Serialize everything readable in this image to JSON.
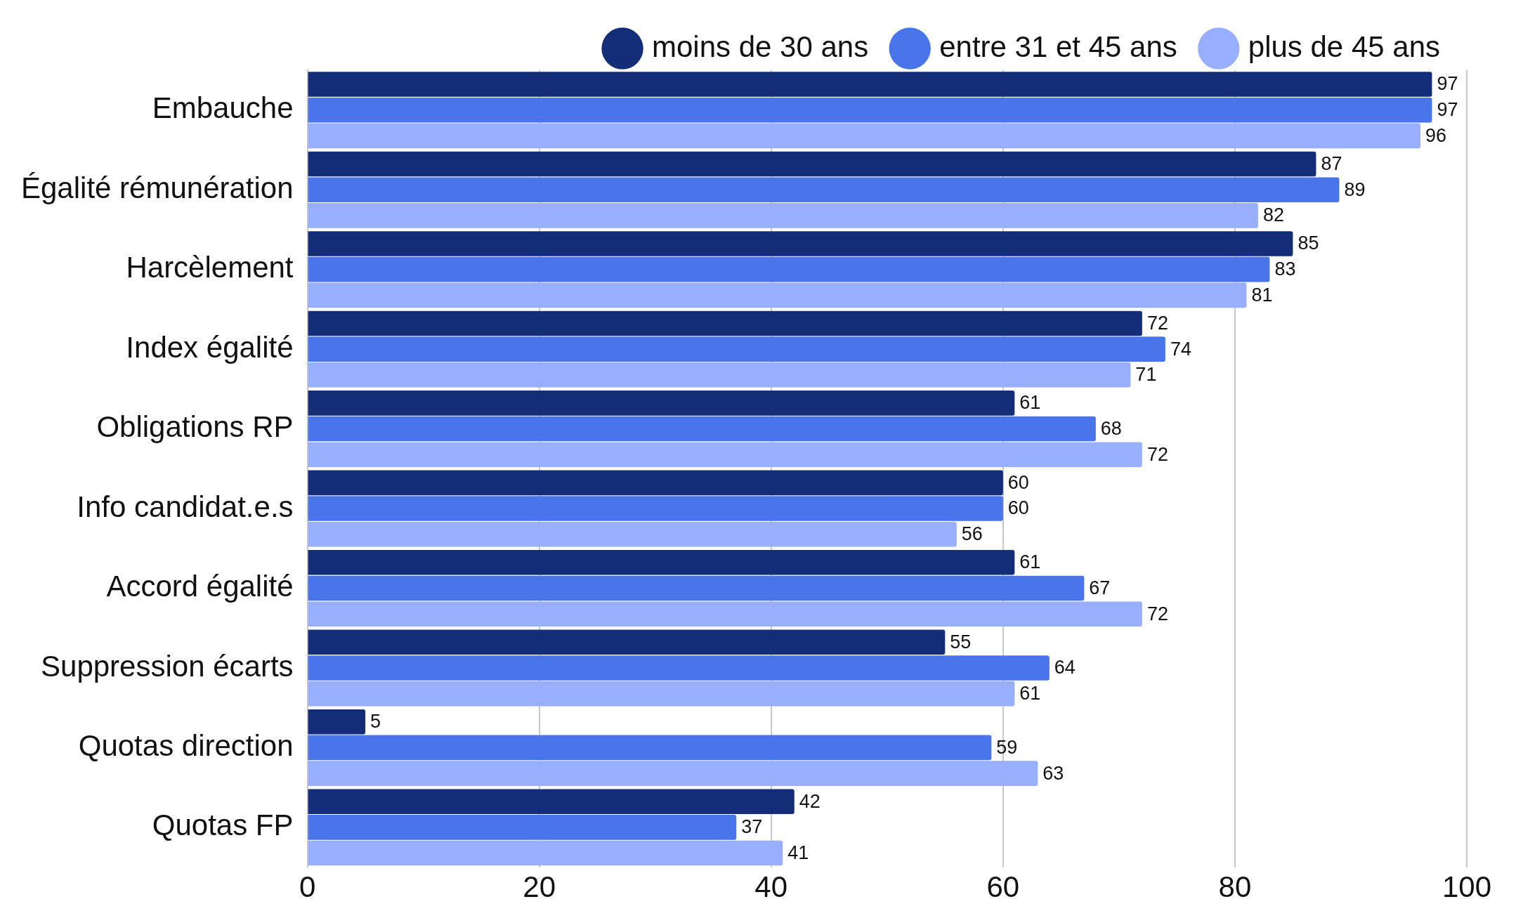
{
  "chart_data": {
    "type": "bar",
    "orientation": "horizontal",
    "categories": [
      "Embauche",
      "Égalité rémunération",
      "Harcèlement",
      "Index égalité",
      "Obligations RP",
      "Info candidat.e.s",
      "Accord égalité",
      "Suppression écarts",
      "Quotas direction",
      "Quotas FP"
    ],
    "series": [
      {
        "name": "moins de 30 ans",
        "color": "#132d78",
        "values": [
          97,
          87,
          85,
          72,
          61,
          60,
          61,
          55,
          5,
          42
        ]
      },
      {
        "name": "entre 31 et 45 ans",
        "color": "#4a74ea",
        "values": [
          97,
          89,
          83,
          74,
          68,
          60,
          67,
          64,
          59,
          37
        ]
      },
      {
        "name": "plus de 45 ans",
        "color": "#98aefe",
        "values": [
          96,
          82,
          81,
          71,
          72,
          56,
          72,
          61,
          63,
          41
        ]
      }
    ],
    "xlim": [
      0,
      100
    ],
    "xticks": [
      0,
      20,
      40,
      60,
      80,
      100
    ],
    "grid": "x",
    "legend": "top right",
    "data_labels": true
  }
}
